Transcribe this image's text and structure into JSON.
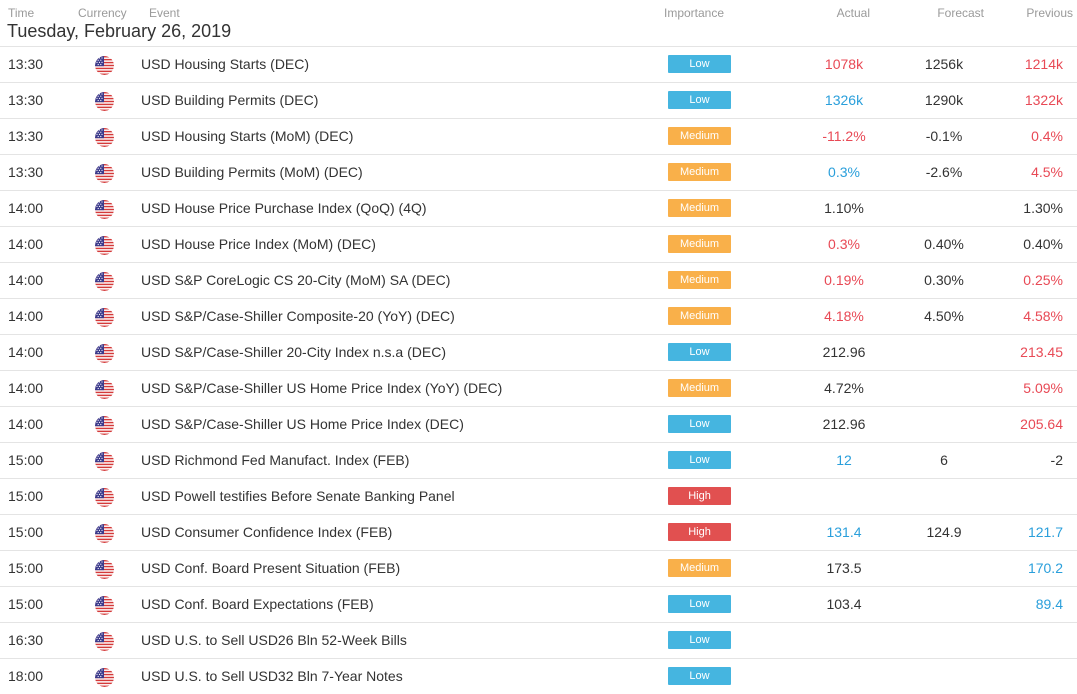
{
  "headers": {
    "time": "Time",
    "currency": "Currency",
    "event": "Event",
    "importance": "Importance",
    "actual": "Actual",
    "forecast": "Forecast",
    "previous": "Previous"
  },
  "date": "Tuesday, February 26, 2019",
  "colors": {
    "red": "#e84955",
    "blue": "#2a9fdb",
    "low": "#45b5e0",
    "medium": "#f9b04a",
    "high": "#e15050"
  },
  "flag_icon": "us-flag-icon",
  "events": [
    {
      "time": "13:30",
      "event": "USD Housing Starts (DEC)",
      "importance": "Low",
      "actual": "1078k",
      "actual_tone": "red",
      "forecast": "1256k",
      "previous": "1214k",
      "previous_tone": "red"
    },
    {
      "time": "13:30",
      "event": "USD Building Permits (DEC)",
      "importance": "Low",
      "actual": "1326k",
      "actual_tone": "blue",
      "forecast": "1290k",
      "previous": "1322k",
      "previous_tone": "red"
    },
    {
      "time": "13:30",
      "event": "USD Housing Starts (MoM) (DEC)",
      "importance": "Medium",
      "actual": "-11.2%",
      "actual_tone": "red",
      "forecast": "-0.1%",
      "previous": "0.4%",
      "previous_tone": "red"
    },
    {
      "time": "13:30",
      "event": "USD Building Permits (MoM) (DEC)",
      "importance": "Medium",
      "actual": "0.3%",
      "actual_tone": "blue",
      "forecast": "-2.6%",
      "previous": "4.5%",
      "previous_tone": "red"
    },
    {
      "time": "14:00",
      "event": "USD House Price Purchase Index (QoQ) (4Q)",
      "importance": "Medium",
      "actual": "1.10%",
      "actual_tone": "neutral",
      "forecast": "",
      "previous": "1.30%",
      "previous_tone": "neutral"
    },
    {
      "time": "14:00",
      "event": "USD House Price Index (MoM) (DEC)",
      "importance": "Medium",
      "actual": "0.3%",
      "actual_tone": "red",
      "forecast": "0.40%",
      "previous": "0.40%",
      "previous_tone": "neutral"
    },
    {
      "time": "14:00",
      "event": "USD S&P CoreLogic CS 20-City (MoM) SA (DEC)",
      "importance": "Medium",
      "actual": "0.19%",
      "actual_tone": "red",
      "forecast": "0.30%",
      "previous": "0.25%",
      "previous_tone": "red"
    },
    {
      "time": "14:00",
      "event": "USD S&P/Case-Shiller Composite-20 (YoY) (DEC)",
      "importance": "Medium",
      "actual": "4.18%",
      "actual_tone": "red",
      "forecast": "4.50%",
      "previous": "4.58%",
      "previous_tone": "red"
    },
    {
      "time": "14:00",
      "event": "USD S&P/Case-Shiller 20-City Index n.s.a (DEC)",
      "importance": "Low",
      "actual": "212.96",
      "actual_tone": "neutral",
      "forecast": "",
      "previous": "213.45",
      "previous_tone": "red"
    },
    {
      "time": "14:00",
      "event": "USD S&P/Case-Shiller US Home Price Index (YoY) (DEC)",
      "importance": "Medium",
      "actual": "4.72%",
      "actual_tone": "neutral",
      "forecast": "",
      "previous": "5.09%",
      "previous_tone": "red"
    },
    {
      "time": "14:00",
      "event": "USD S&P/Case-Shiller US Home Price Index (DEC)",
      "importance": "Low",
      "actual": "212.96",
      "actual_tone": "neutral",
      "forecast": "",
      "previous": "205.64",
      "previous_tone": "red"
    },
    {
      "time": "15:00",
      "event": "USD Richmond Fed Manufact. Index (FEB)",
      "importance": "Low",
      "actual": "12",
      "actual_tone": "blue",
      "forecast": "6",
      "previous": "-2",
      "previous_tone": "neutral"
    },
    {
      "time": "15:00",
      "event": "USD Powell testifies Before Senate Banking Panel",
      "importance": "High",
      "actual": "",
      "actual_tone": "neutral",
      "forecast": "",
      "previous": "",
      "previous_tone": "neutral"
    },
    {
      "time": "15:00",
      "event": "USD Consumer Confidence Index (FEB)",
      "importance": "High",
      "actual": "131.4",
      "actual_tone": "blue",
      "forecast": "124.9",
      "previous": "121.7",
      "previous_tone": "blue"
    },
    {
      "time": "15:00",
      "event": "USD Conf. Board Present Situation (FEB)",
      "importance": "Medium",
      "actual": "173.5",
      "actual_tone": "neutral",
      "forecast": "",
      "previous": "170.2",
      "previous_tone": "blue"
    },
    {
      "time": "15:00",
      "event": "USD Conf. Board Expectations (FEB)",
      "importance": "Low",
      "actual": "103.4",
      "actual_tone": "neutral",
      "forecast": "",
      "previous": "89.4",
      "previous_tone": "blue"
    },
    {
      "time": "16:30",
      "event": "USD U.S. to Sell USD26 Bln 52-Week Bills",
      "importance": "Low",
      "actual": "",
      "actual_tone": "neutral",
      "forecast": "",
      "previous": "",
      "previous_tone": "neutral"
    },
    {
      "time": "18:00",
      "event": "USD U.S. to Sell USD32 Bln 7-Year Notes",
      "importance": "Low",
      "actual": "",
      "actual_tone": "neutral",
      "forecast": "",
      "previous": "",
      "previous_tone": "neutral"
    }
  ]
}
